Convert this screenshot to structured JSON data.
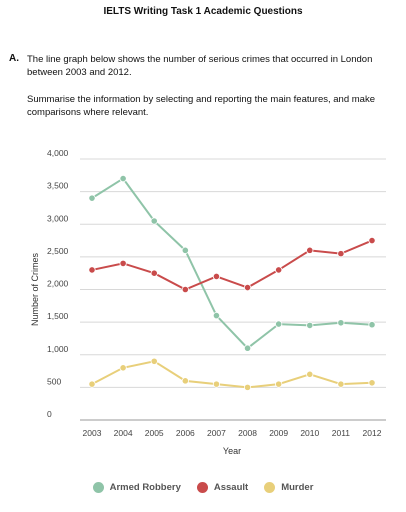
{
  "header": {
    "title": "IELTS Writing Task 1 Academic Questions"
  },
  "question": {
    "number": "A.",
    "prompt": "The line graph below shows the number of serious crimes that occurred in London between 2003 and 2012.",
    "instruction": "Summarise the information by selecting and reporting the main features, and make comparisons where relevant."
  },
  "chart_data": {
    "type": "line",
    "xlabel": "Year",
    "ylabel": "Number of Crimes",
    "ylim": [
      0,
      4000
    ],
    "yticks": [
      0,
      500,
      1000,
      1500,
      2000,
      2500,
      3000,
      3500,
      4000
    ],
    "ytick_labels": [
      "0",
      "500",
      "1,000",
      "1,500",
      "2,000",
      "2,500",
      "3,000",
      "3,500",
      "4,000"
    ],
    "categories": [
      "2003",
      "2004",
      "2005",
      "2006",
      "2007",
      "2008",
      "2009",
      "2010",
      "2011",
      "2012"
    ],
    "grid": true,
    "legend_position": "bottom",
    "series": [
      {
        "name": "Armed Robbery",
        "color": "#8fc4a8",
        "values": [
          3400,
          3700,
          3050,
          2600,
          1600,
          1100,
          1470,
          1450,
          1490,
          1460
        ]
      },
      {
        "name": "Assault",
        "color": "#c94b4b",
        "values": [
          2300,
          2400,
          2250,
          2000,
          2200,
          2030,
          2300,
          2600,
          2550,
          2750
        ]
      },
      {
        "name": "Murder",
        "color": "#e8cf7a",
        "values": [
          550,
          800,
          900,
          600,
          550,
          500,
          550,
          700,
          550,
          570
        ]
      }
    ]
  }
}
